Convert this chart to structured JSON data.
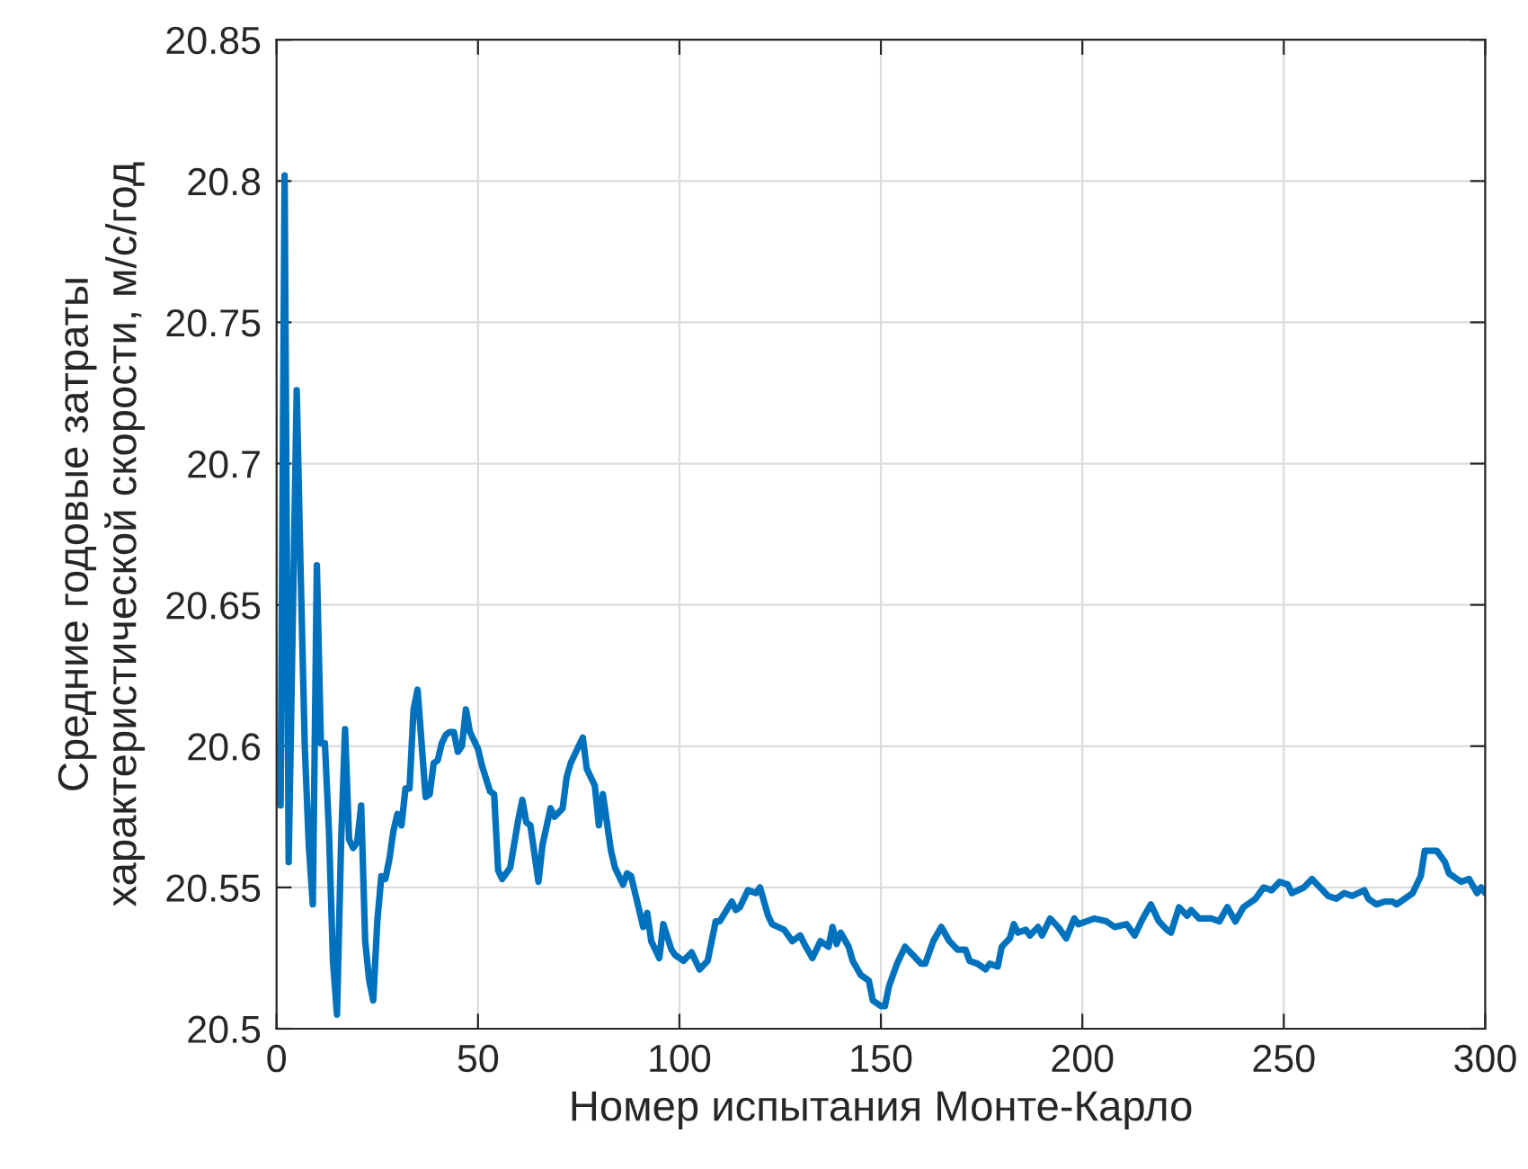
{
  "chart_data": {
    "type": "line",
    "xlabel": "Номер испытания Монте-Карло",
    "ylabel": "Средние годовые затраты\nхарактеристической скорости, м/с/год",
    "x": [
      1,
      2,
      3,
      5,
      6,
      7,
      8,
      9,
      10,
      11,
      12,
      13,
      14,
      15,
      16,
      17,
      18,
      19,
      20,
      21,
      22,
      23,
      24,
      25,
      26,
      27,
      28,
      29,
      30,
      31,
      32,
      33,
      34,
      35,
      36,
      37,
      38,
      39,
      40,
      41,
      42,
      43,
      44,
      45,
      46,
      47,
      48,
      50,
      51,
      53,
      54,
      55,
      56,
      58,
      60,
      61,
      62,
      63,
      65,
      66,
      68,
      69,
      71,
      72,
      73,
      75,
      76,
      77,
      79,
      80,
      81,
      83,
      84,
      86,
      87,
      88,
      90,
      91,
      92,
      93,
      95,
      96,
      98,
      99,
      101,
      103,
      105,
      107,
      109,
      110,
      113,
      114,
      115,
      117,
      119,
      120,
      122,
      123,
      126,
      128,
      130,
      131,
      133,
      135,
      137,
      138,
      139,
      140,
      142,
      143,
      145,
      147,
      148,
      150,
      151,
      152,
      154,
      156,
      158,
      160,
      161,
      163,
      165,
      167,
      169,
      171,
      172,
      174,
      176,
      177,
      179,
      180,
      182,
      183,
      184,
      186,
      187,
      189,
      190,
      192,
      194,
      196,
      198,
      199,
      201,
      203,
      206,
      208,
      211,
      213,
      215,
      217,
      219,
      221,
      222,
      224,
      226,
      227,
      229,
      231,
      232,
      234,
      236,
      238,
      240,
      243,
      245,
      247,
      249,
      251,
      252,
      255,
      257,
      259,
      261,
      263,
      265,
      267,
      270,
      271,
      273,
      275,
      277,
      278,
      280,
      282,
      284,
      285,
      287,
      288,
      290,
      291,
      294,
      296,
      298,
      299,
      300
    ],
    "series": [
      {
        "color": "#0072bd",
        "values": [
          20.579,
          20.802,
          20.559,
          20.726,
          20.66,
          20.6,
          20.565,
          20.544,
          20.664,
          20.601,
          20.601,
          20.57,
          20.524,
          20.505,
          20.565,
          20.606,
          20.567,
          20.564,
          20.566,
          20.579,
          20.531,
          20.517,
          20.51,
          20.538,
          20.554,
          20.553,
          20.56,
          20.57,
          20.576,
          20.572,
          20.585,
          20.585,
          20.613,
          20.62,
          20.601,
          20.582,
          20.583,
          20.594,
          20.595,
          20.601,
          20.604,
          20.605,
          20.605,
          20.598,
          20.6,
          20.613,
          20.605,
          20.599,
          20.593,
          20.584,
          20.583,
          20.556,
          20.553,
          20.557,
          20.574,
          20.581,
          20.573,
          20.572,
          20.552,
          20.565,
          20.578,
          20.575,
          20.578,
          20.589,
          20.594,
          20.6,
          20.603,
          20.592,
          20.586,
          20.572,
          20.583,
          20.563,
          20.557,
          20.551,
          20.555,
          20.554,
          20.542,
          20.536,
          20.541,
          20.531,
          20.525,
          20.537,
          20.528,
          20.526,
          20.524,
          20.527,
          20.521,
          20.524,
          20.538,
          20.538,
          20.545,
          20.542,
          20.543,
          20.549,
          20.548,
          20.55,
          20.54,
          20.537,
          20.535,
          20.531,
          20.533,
          20.53,
          20.525,
          20.531,
          20.529,
          20.536,
          20.53,
          20.534,
          20.529,
          20.524,
          20.519,
          20.517,
          20.51,
          20.508,
          20.508,
          20.515,
          20.523,
          20.529,
          20.526,
          20.523,
          20.523,
          20.531,
          20.536,
          20.531,
          20.528,
          20.528,
          20.524,
          20.523,
          20.521,
          20.523,
          20.522,
          20.529,
          20.532,
          20.537,
          20.534,
          20.535,
          20.533,
          20.536,
          20.533,
          20.539,
          20.536,
          20.532,
          20.539,
          20.537,
          20.538,
          20.539,
          20.538,
          20.536,
          20.537,
          20.533,
          20.539,
          20.544,
          20.538,
          20.535,
          20.534,
          20.543,
          20.54,
          20.542,
          20.539,
          20.539,
          20.539,
          20.538,
          20.543,
          20.538,
          20.543,
          20.546,
          20.55,
          20.549,
          20.552,
          20.551,
          20.548,
          20.55,
          20.553,
          20.55,
          20.547,
          20.546,
          20.548,
          20.547,
          20.549,
          20.546,
          20.544,
          20.545,
          20.545,
          20.544,
          20.546,
          20.548,
          20.554,
          20.563,
          20.563,
          20.563,
          20.559,
          20.555,
          20.552,
          20.553,
          20.548,
          20.55,
          20.548
        ]
      }
    ],
    "xlim": [
      0,
      300
    ],
    "xticks": [
      0,
      50,
      100,
      150,
      200,
      250,
      300
    ],
    "ylim": [
      20.5,
      20.85
    ],
    "yticks": [
      20.5,
      20.55,
      20.6,
      20.65,
      20.7,
      20.75,
      20.8,
      20.85
    ],
    "grid": true,
    "marker": "none",
    "line_style": "solid"
  }
}
